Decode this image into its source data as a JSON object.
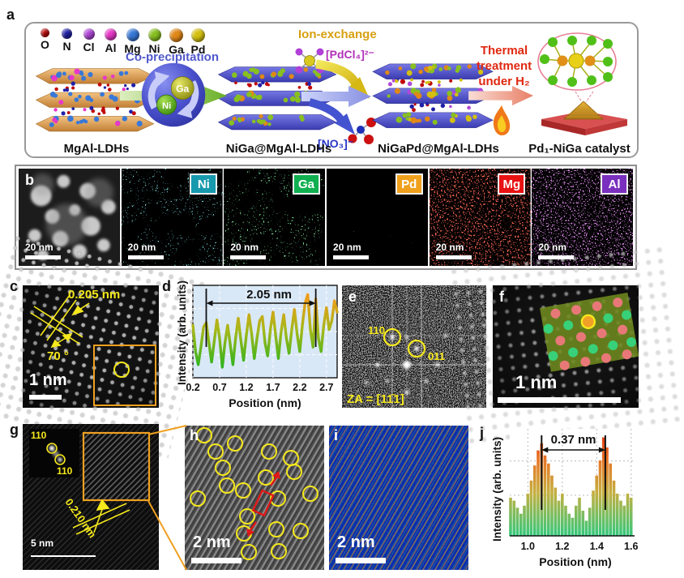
{
  "panels": {
    "a": {
      "label": "a",
      "legend": [
        {
          "symbol": "O",
          "color": "#c00808"
        },
        {
          "symbol": "N",
          "color": "#2020a8"
        },
        {
          "symbol": "Cl",
          "color": "#b048d8"
        },
        {
          "symbol": "Al",
          "color": "#e838c8"
        },
        {
          "symbol": "Mg",
          "color": "#3878d8"
        },
        {
          "symbol": "Ni",
          "color": "#88c020"
        },
        {
          "symbol": "Ga",
          "color": "#e08818"
        },
        {
          "symbol": "Pd",
          "color": "#d4c010"
        }
      ],
      "co_precipitation": "Co-precipitation",
      "ion_exchange": "Ion-exchange",
      "pdcl4": "[PdCl₄]²⁻",
      "no3": "[NO₃]⁻",
      "thermal_line1": "Thermal",
      "thermal_line2": "treatment",
      "thermal_line3": "under H₂",
      "ga_label": "Ga",
      "ni_label": "Ni",
      "materials": [
        "MgAl-LDHs",
        "NiGa@MgAl-LDHs",
        "NiGaPd@MgAl-LDHs",
        "Pd₁-NiGa catalyst"
      ]
    },
    "b": {
      "label": "b",
      "maps": [
        {
          "element": "",
          "color": "#888888",
          "scale": "20 nm"
        },
        {
          "element": "Ni",
          "color": "#189aae",
          "scale": "20 nm"
        },
        {
          "element": "Ga",
          "color": "#10b050",
          "scale": "20 nm"
        },
        {
          "element": "Pd",
          "color": "#f0a01c",
          "scale": "20 nm"
        },
        {
          "element": "Mg",
          "color": "#e81212",
          "scale": "20 nm"
        },
        {
          "element": "Al",
          "color": "#7b2fbe",
          "scale": "20 nm"
        }
      ]
    },
    "c": {
      "label": "c",
      "dspacing": "0.205 nm",
      "angle": "70 °",
      "scale": "1 nm"
    },
    "d": {
      "label": "d"
    },
    "e": {
      "label": "e",
      "spot1": "110",
      "spot2": "011",
      "zone_axis": "ZA = [11̄1]"
    },
    "f": {
      "label": "f",
      "scale": "1 nm"
    },
    "g": {
      "label": "g",
      "fft_spot1": "110",
      "fft_spot2": "110",
      "dspacing": "0.210 nm",
      "scale": "5 nm"
    },
    "h": {
      "label": "h",
      "scale": "2 nm"
    },
    "i": {
      "label": "i",
      "scale": "2 nm"
    },
    "j": {
      "label": "j"
    }
  },
  "chart_data": [
    {
      "type": "line",
      "title": "",
      "xlabel": "Position (nm)",
      "ylabel": "Intensity (arb. units)",
      "xlim": [
        0.2,
        2.9
      ],
      "ylim": [
        0,
        1
      ],
      "xticks": [
        "0.2",
        "0.7",
        "1.2",
        "1.7",
        "2.2",
        "2.7"
      ],
      "grid": true,
      "bg": "#d9e8f7",
      "annotation": {
        "label": "2.05 nm",
        "x1": 0.45,
        "x2": 2.5
      },
      "series": [
        {
          "name": "intensity profile",
          "x_start": 0.2,
          "x_step": 0.05,
          "y": [
            0.6,
            0.3,
            0.15,
            0.35,
            0.58,
            0.63,
            0.4,
            0.18,
            0.42,
            0.66,
            0.45,
            0.12,
            0.4,
            0.6,
            0.38,
            0.15,
            0.45,
            0.68,
            0.42,
            0.2,
            0.48,
            0.72,
            0.5,
            0.22,
            0.45,
            0.65,
            0.7,
            0.4,
            0.25,
            0.55,
            0.75,
            0.48,
            0.22,
            0.52,
            0.72,
            0.45,
            0.28,
            0.55,
            0.78,
            0.5,
            0.3,
            0.6,
            0.85,
            0.95,
            0.55,
            0.35,
            0.9,
            0.45,
            0.3,
            0.6,
            0.8,
            0.55,
            0.65,
            0.88,
            0.75
          ]
        }
      ]
    },
    {
      "type": "bar",
      "title": "",
      "xlabel": "Position (nm)",
      "ylabel": "Intensity (arb. units)",
      "xlim": [
        0.895,
        1.62
      ],
      "ylim": [
        0,
        1
      ],
      "xticks": [
        "1.0",
        "1.2",
        "1.4",
        "1.6"
      ],
      "grid": true,
      "bg": "#ffffff",
      "annotation": {
        "label": "0.37 nm",
        "x1": 1.08,
        "x2": 1.45
      },
      "series": [
        {
          "name": "intensity profile",
          "x_start": 0.9,
          "x_step": 0.02,
          "y": [
            0.38,
            0.35,
            0.28,
            0.22,
            0.3,
            0.42,
            0.55,
            0.7,
            0.85,
            0.92,
            0.8,
            0.72,
            0.6,
            0.48,
            0.35,
            0.42,
            0.3,
            0.22,
            0.18,
            0.3,
            0.38,
            0.25,
            0.15,
            0.28,
            0.45,
            0.6,
            0.75,
            0.98,
            0.88,
            0.72,
            0.55,
            0.42,
            0.35,
            0.3,
            0.42,
            0.38
          ]
        }
      ]
    }
  ]
}
